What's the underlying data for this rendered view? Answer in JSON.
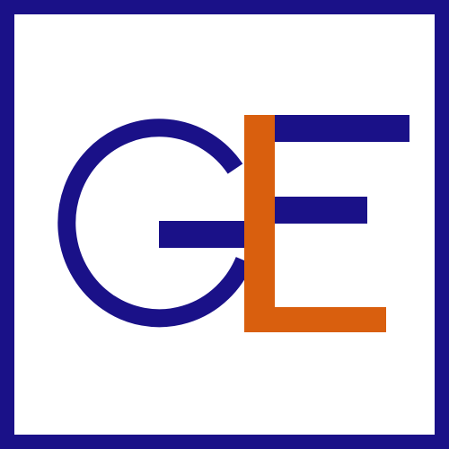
{
  "logo": {
    "lettering": "GLE",
    "colors": {
      "frame": "#1a1188",
      "background": "#ffffff",
      "letter_g": "#1a1188",
      "letter_l": "#d95f0e",
      "letter_e": "#1a1188"
    }
  }
}
